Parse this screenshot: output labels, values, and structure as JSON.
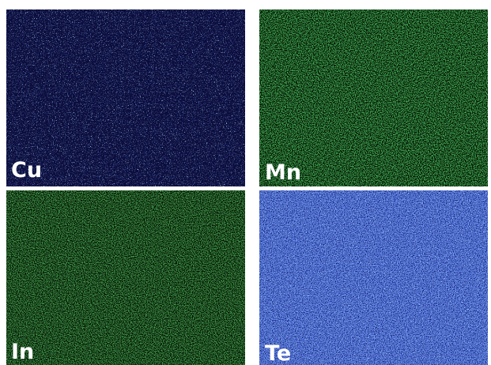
{
  "panels": [
    {
      "label": "Cu"
    },
    {
      "label": "Mn"
    },
    {
      "label": "In"
    },
    {
      "label": "Te"
    }
  ]
}
